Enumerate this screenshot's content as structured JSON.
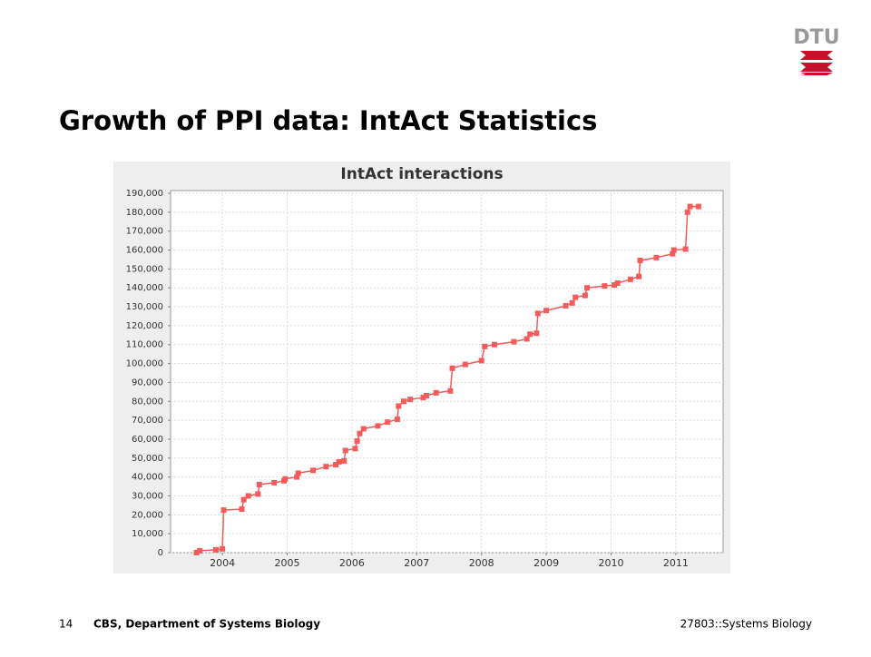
{
  "slide": {
    "title": "Growth of PPI data: IntAct Statistics",
    "logo": "DTU",
    "page_number": "14",
    "footer_left": "CBS, Department of Systems Biology",
    "footer_right": "27803::Systems Biology"
  },
  "chart_data": {
    "type": "line",
    "title": "IntAct interactions",
    "color": "#f45b5b",
    "grid": true,
    "x": [
      2003.6,
      2003.65,
      2003.9,
      2004.0,
      2004.02,
      2004.3,
      2004.33,
      2004.4,
      2004.55,
      2004.57,
      2004.8,
      2004.95,
      2004.97,
      2005.15,
      2005.17,
      2005.4,
      2005.6,
      2005.75,
      2005.8,
      2005.88,
      2005.9,
      2006.05,
      2006.08,
      2006.12,
      2006.18,
      2006.4,
      2006.55,
      2006.7,
      2006.72,
      2006.8,
      2006.9,
      2007.1,
      2007.15,
      2007.3,
      2007.52,
      2007.55,
      2007.75,
      2008.0,
      2008.05,
      2008.2,
      2008.5,
      2008.7,
      2008.75,
      2008.85,
      2008.87,
      2009.0,
      2009.3,
      2009.4,
      2009.45,
      2009.6,
      2009.63,
      2009.9,
      2010.05,
      2010.1,
      2010.3,
      2010.43,
      2010.45,
      2010.7,
      2010.95,
      2010.97,
      2011.15,
      2011.18,
      2011.22,
      2011.35
    ],
    "values": [
      0,
      1000,
      1500,
      2000,
      22500,
      23000,
      28000,
      30000,
      31000,
      36000,
      37000,
      38000,
      39000,
      40000,
      42000,
      43500,
      45500,
      46500,
      48000,
      48500,
      54000,
      55000,
      59000,
      63000,
      65500,
      67000,
      69000,
      70500,
      77500,
      80000,
      81000,
      82000,
      83000,
      84500,
      85500,
      97500,
      99500,
      101500,
      109000,
      110000,
      111500,
      113000,
      115500,
      116000,
      126500,
      128000,
      130500,
      132000,
      135000,
      136000,
      140000,
      141000,
      141500,
      142500,
      144500,
      146000,
      154500,
      156000,
      158000,
      160000,
      160500,
      180000,
      183000,
      183000
    ],
    "xlim": [
      2003.2,
      2011.73
    ],
    "xticks": [
      2004,
      2005,
      2006,
      2007,
      2008,
      2009,
      2010,
      2011
    ],
    "ylim": [
      0,
      190000
    ],
    "yticks": [
      0,
      {
        "value": 10000,
        "label": "10,000"
      },
      {
        "value": 20000,
        "label": "20,000"
      },
      {
        "value": 30000,
        "label": "30,000"
      },
      {
        "value": 40000,
        "label": "40,000"
      },
      {
        "value": 50000,
        "label": "50,000"
      },
      {
        "value": 60000,
        "label": "60,000"
      },
      {
        "value": 70000,
        "label": "70,000"
      },
      {
        "value": 80000,
        "label": "80,000"
      },
      {
        "value": 90000,
        "label": "90,000"
      },
      {
        "value": 100000,
        "label": "100,000"
      },
      {
        "value": 110000,
        "label": "110,000"
      },
      {
        "value": 120000,
        "label": "120,000"
      },
      {
        "value": 130000,
        "label": "130,000"
      },
      {
        "value": 140000,
        "label": "140,000"
      },
      {
        "value": 150000,
        "label": "150,000"
      },
      {
        "value": 160000,
        "label": "160,000"
      },
      {
        "value": 170000,
        "label": "170,000"
      },
      {
        "value": 180000,
        "label": "180,000"
      },
      {
        "value": 190000,
        "label": "190,000"
      }
    ]
  }
}
